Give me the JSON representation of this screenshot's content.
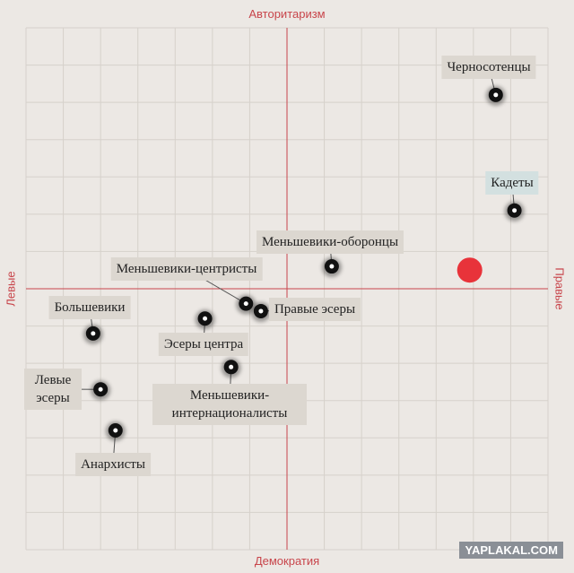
{
  "chart_data": {
    "type": "scatter",
    "y_top_label": "Авторитаризм",
    "y_bottom_label": "Демократия",
    "x_left_label": "Левые",
    "x_right_label": "Правые",
    "xlim": [
      -7,
      7
    ],
    "ylim": [
      -7,
      7
    ],
    "xticks": [
      -7,
      -6,
      -5,
      -4,
      -3,
      -2,
      -1,
      0,
      1,
      2,
      3,
      4,
      5,
      6,
      7
    ],
    "yticks": [
      -7,
      -6,
      -5,
      -4,
      -3,
      -2,
      -1,
      0,
      1,
      2,
      3,
      4,
      5,
      6,
      7
    ],
    "grid": true,
    "grid_color": "#d6d1cb",
    "axis_color": "#c8454b",
    "series": [
      {
        "color": "#111111",
        "labels": [
          "Черносотенцы",
          "Кадеты",
          "Меньшевики-оборонцы",
          "Меньшевики-центристы",
          "Правые эсеры",
          "Большевики",
          "Эсеры центра",
          "Меньшевики-интернационалисты",
          "Левые эсеры",
          "Анархисты"
        ],
        "x": [
          5.6,
          6.1,
          1.2,
          -1.1,
          -0.7,
          -5.2,
          -2.2,
          -1.5,
          -5.0,
          -4.6
        ],
        "values": [
          5.2,
          2.1,
          0.6,
          -0.4,
          -0.6,
          -1.2,
          -0.8,
          -2.1,
          -2.7,
          -3.8
        ]
      },
      {
        "color": "#e8333a",
        "x": [
          4.9
        ],
        "values": [
          0.5
        ]
      }
    ]
  },
  "watermark": "YAPLAKAL.COM"
}
